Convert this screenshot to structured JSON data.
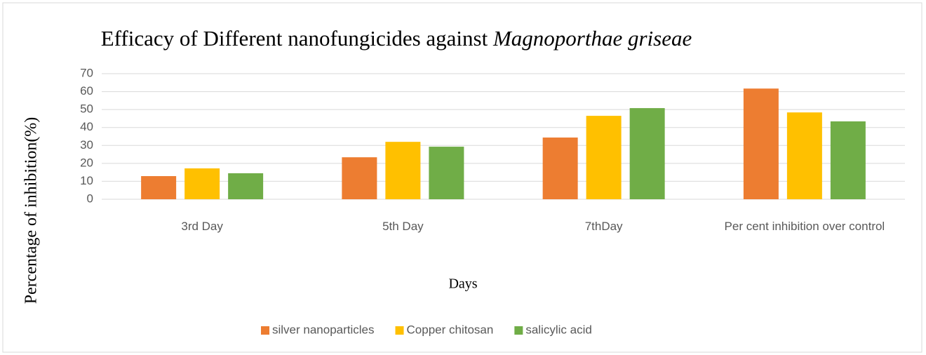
{
  "chart_data": {
    "type": "bar",
    "title": {
      "text": "Efficacy of Different nanofungicides against",
      "italic": "Magnoporthae griseae"
    },
    "xlabel": "Days",
    "ylabel": "Percentage of inhibition(%)",
    "categories": [
      "3rd Day",
      "5th Day",
      "7thDay",
      "Per cent inhibition over control"
    ],
    "series": [
      {
        "name": "silver nanoparticles",
        "color": "#ed7d31",
        "values": [
          12.9,
          23.4,
          34.4,
          61.7
        ]
      },
      {
        "name": "Copper chitosan",
        "color": "#ffc000",
        "values": [
          17.2,
          32,
          46.5,
          48.4
        ]
      },
      {
        "name": "salicylic acid",
        "color": "#70ad47",
        "values": [
          14.5,
          29.3,
          50.8,
          43.4
        ]
      }
    ],
    "ylim": [
      0,
      70
    ],
    "yticks": [
      0,
      10,
      20,
      30,
      40,
      50,
      60,
      70
    ],
    "grid": true,
    "legend": "bottom"
  }
}
